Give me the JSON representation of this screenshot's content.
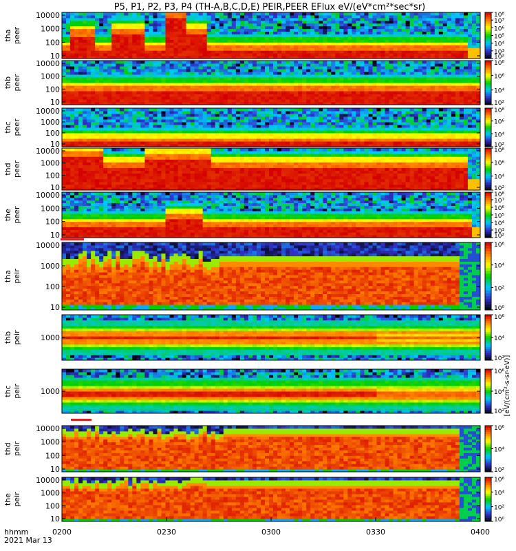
{
  "title": "P5, P1, P2, P3, P4 (TH-A,B,C,D,E) PEIR,PEER EFlux eV/(eV*cm²*sec*sr)",
  "chart_data": {
    "type": "heatmap",
    "title": "P5, P1, P2, P3, P4 (TH-A,B,C,D,E) PEIR,PEER EFlux eV/(eV*cm²*sec*sr)",
    "xlabel": "hhmm",
    "date_label": "2021 Mar 13",
    "x_ticks": [
      "0200",
      "0230",
      "0300",
      "0330",
      "0400"
    ],
    "x_range": [
      "02:00",
      "04:00"
    ],
    "y_scale": "log",
    "colorbar_label": "[eV/(cm²-s-sr-eV)]",
    "colormap": [
      "#000000",
      "#3030c8",
      "#00c8ff",
      "#00d000",
      "#ffff00",
      "#ff8000",
      "#d40000"
    ],
    "panels": [
      {
        "name": "tha peer",
        "line1": "tha",
        "line2": "peer",
        "y_ticks": [
          "10",
          "100",
          "1000",
          "10000"
        ],
        "cb_ticks": [
          "10²",
          "10³",
          "10⁴",
          "10⁵",
          "10⁶",
          "10⁷",
          "10⁸"
        ],
        "cb_range": [
          2,
          8
        ],
        "profile": "peer_a"
      },
      {
        "name": "thb peer",
        "line1": "thb",
        "line2": "peer",
        "y_ticks": [
          "10",
          "100",
          "1000",
          "10000"
        ],
        "cb_ticks": [
          "10²",
          "10⁴",
          "10⁶",
          "10⁸"
        ],
        "cb_range": [
          2,
          8
        ],
        "profile": "peer_b"
      },
      {
        "name": "thc peer",
        "line1": "thc",
        "line2": "peer",
        "y_ticks": [
          "10",
          "100",
          "1000",
          "10000"
        ],
        "cb_ticks": [
          "10²",
          "10⁴",
          "10⁶",
          "10⁸"
        ],
        "cb_range": [
          2,
          8
        ],
        "profile": "peer_c"
      },
      {
        "name": "thd peer",
        "line1": "thd",
        "line2": "peer",
        "y_ticks": [
          "10",
          "100",
          "1000",
          "10000"
        ],
        "cb_ticks": [
          "10²",
          "10⁴",
          "10⁶",
          "10⁸"
        ],
        "cb_range": [
          2,
          8
        ],
        "profile": "peer_d"
      },
      {
        "name": "the peer",
        "line1": "the",
        "line2": "peer",
        "y_ticks": [
          "10",
          "100",
          "1000",
          "10000"
        ],
        "cb_ticks": [
          "10²",
          "10³",
          "10⁴",
          "10⁵",
          "10⁶",
          "10⁷",
          "10⁸"
        ],
        "cb_range": [
          2,
          8
        ],
        "profile": "peer_e"
      },
      {
        "name": "tha peir",
        "line1": "tha",
        "line2": "peir",
        "y_ticks": [
          "10",
          "100",
          "1000",
          "10000"
        ],
        "cb_ticks": [
          "10⁰",
          "10²",
          "10⁴",
          "10⁶"
        ],
        "cb_range": [
          0,
          6
        ],
        "profile": "peir_a"
      },
      {
        "name": "thb peir",
        "line1": "thb",
        "line2": "peir",
        "y_ticks": [
          "1000"
        ],
        "cb_ticks": [
          "10²",
          "10⁴",
          "10⁶"
        ],
        "cb_range": [
          2,
          6
        ],
        "profile": "peir_b"
      },
      {
        "name": "thc peir",
        "line1": "thc",
        "line2": "peir",
        "y_ticks": [
          "1000"
        ],
        "cb_ticks": [
          "10²",
          "10⁴",
          "10⁶"
        ],
        "cb_range": [
          2,
          6
        ],
        "profile": "peir_c"
      },
      {
        "name": "thd peir",
        "line1": "thd",
        "line2": "peir",
        "y_ticks": [
          "10",
          "100",
          "1000",
          "10000"
        ],
        "cb_ticks": [
          "10²",
          "10⁴",
          "10⁶"
        ],
        "cb_range": [
          2,
          6
        ],
        "profile": "peir_d"
      },
      {
        "name": "the peir",
        "line1": "the",
        "line2": "peir",
        "y_ticks": [
          "10",
          "100",
          "1000",
          "10000"
        ],
        "cb_ticks": [
          "10⁰",
          "10²",
          "10⁴",
          "10⁶"
        ],
        "cb_range": [
          0,
          6
        ],
        "profile": "peir_e"
      }
    ]
  }
}
